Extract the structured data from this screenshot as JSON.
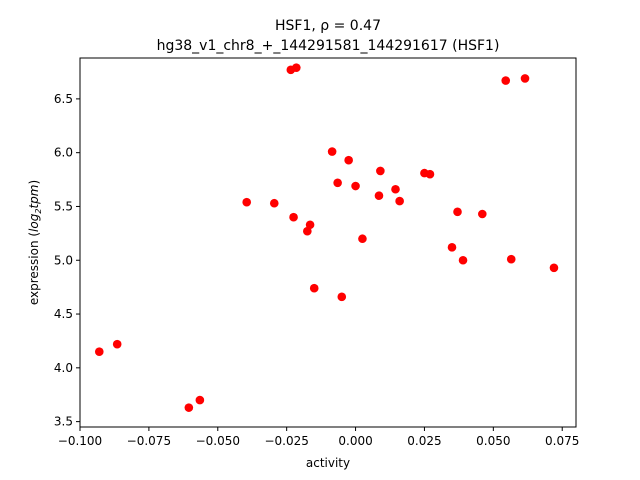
{
  "chart_data": {
    "type": "scatter",
    "title_line1": "HSF1, ρ = 0.47",
    "title_line2": "hg38_v1_chr8_+_144291581_144291617 (HSF1)",
    "xlabel": "activity",
    "ylabel_prefix": "expression (",
    "ylabel_italic_base": "log",
    "ylabel_sub": "2",
    "ylabel_italic_rest": "tpm",
    "ylabel_suffix": ")",
    "xlim": [
      -0.1,
      0.08
    ],
    "ylim": [
      3.45,
      6.88
    ],
    "xticks": [
      -0.1,
      -0.075,
      -0.05,
      -0.025,
      0.0,
      0.025,
      0.05,
      0.075
    ],
    "xtick_labels": [
      "−0.100",
      "−0.075",
      "−0.050",
      "−0.025",
      "0.000",
      "0.025",
      "0.050",
      "0.075"
    ],
    "yticks": [
      3.5,
      4.0,
      4.5,
      5.0,
      5.5,
      6.0,
      6.5
    ],
    "ytick_labels": [
      "3.5",
      "4.0",
      "4.5",
      "5.0",
      "5.5",
      "6.0",
      "6.5"
    ],
    "marker_color": "#ff0000",
    "grid": false,
    "points": [
      {
        "x": -0.093,
        "y": 4.15
      },
      {
        "x": -0.0865,
        "y": 4.22
      },
      {
        "x": -0.0605,
        "y": 3.63
      },
      {
        "x": -0.0565,
        "y": 3.7
      },
      {
        "x": -0.0395,
        "y": 5.54
      },
      {
        "x": -0.0295,
        "y": 5.53
      },
      {
        "x": -0.0235,
        "y": 6.77
      },
      {
        "x": -0.0215,
        "y": 6.79
      },
      {
        "x": -0.0225,
        "y": 5.4
      },
      {
        "x": -0.0175,
        "y": 5.27
      },
      {
        "x": -0.0165,
        "y": 5.33
      },
      {
        "x": -0.015,
        "y": 4.74
      },
      {
        "x": -0.0085,
        "y": 6.01
      },
      {
        "x": -0.0065,
        "y": 5.72
      },
      {
        "x": -0.005,
        "y": 4.66
      },
      {
        "x": -0.0025,
        "y": 5.93
      },
      {
        "x": 0.0,
        "y": 5.69
      },
      {
        "x": 0.0025,
        "y": 5.2
      },
      {
        "x": 0.0085,
        "y": 5.6
      },
      {
        "x": 0.009,
        "y": 5.83
      },
      {
        "x": 0.0145,
        "y": 5.66
      },
      {
        "x": 0.016,
        "y": 5.55
      },
      {
        "x": 0.025,
        "y": 5.81
      },
      {
        "x": 0.027,
        "y": 5.8
      },
      {
        "x": 0.035,
        "y": 5.12
      },
      {
        "x": 0.037,
        "y": 5.45
      },
      {
        "x": 0.039,
        "y": 5.0
      },
      {
        "x": 0.046,
        "y": 5.43
      },
      {
        "x": 0.0545,
        "y": 6.67
      },
      {
        "x": 0.0565,
        "y": 5.01
      },
      {
        "x": 0.0615,
        "y": 6.69
      },
      {
        "x": 0.072,
        "y": 4.93
      }
    ]
  }
}
